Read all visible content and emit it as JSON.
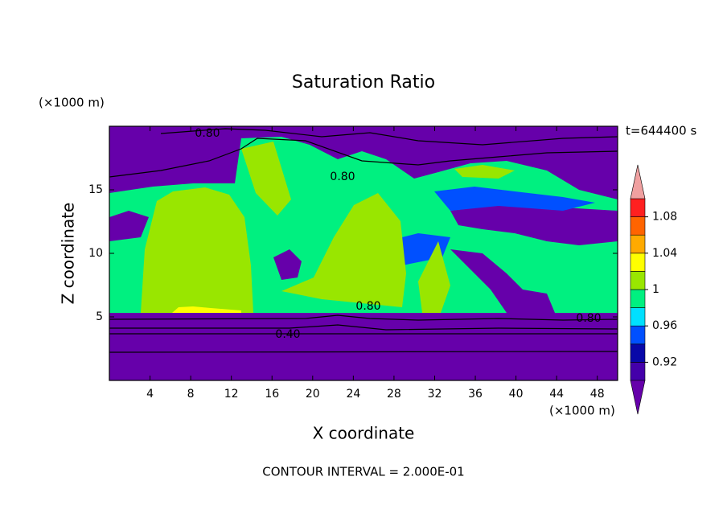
{
  "chart_data": {
    "type": "contour",
    "title": "Saturation Ratio",
    "x_label": "X coordinate",
    "y_label": "Z coordinate",
    "x_unit": "(×1000 m)",
    "y_unit": "(×1000 m)",
    "time_label": "t=644400 s",
    "footer": "CONTOUR INTERVAL = 2.000E-01",
    "xlim": [
      0,
      50
    ],
    "xticks": [
      4,
      8,
      12,
      16,
      20,
      24,
      28,
      32,
      36,
      40,
      44,
      48
    ],
    "ylim": [
      0,
      20
    ],
    "yticks": [
      5,
      10,
      15
    ],
    "contour_labels": [
      "0.80",
      "0.80",
      "0.80",
      "0.80",
      "0.40"
    ],
    "colorbar": {
      "levels": [
        0.9,
        0.92,
        0.94,
        0.96,
        0.98,
        1,
        1.02,
        1.04,
        1.06,
        1.08,
        1.1
      ],
      "ticks": [
        0.92,
        0.96,
        1,
        1.04,
        1.08
      ],
      "colors": [
        "#4400aa",
        "#0808a8",
        "#0050ff",
        "#00e0ff",
        "#00f080",
        "#99e600",
        "#ffff00",
        "#ffaa00",
        "#ff6400",
        "#ff2020"
      ],
      "below_color": "#6600aa",
      "above_color": "#f0a0a0"
    }
  }
}
